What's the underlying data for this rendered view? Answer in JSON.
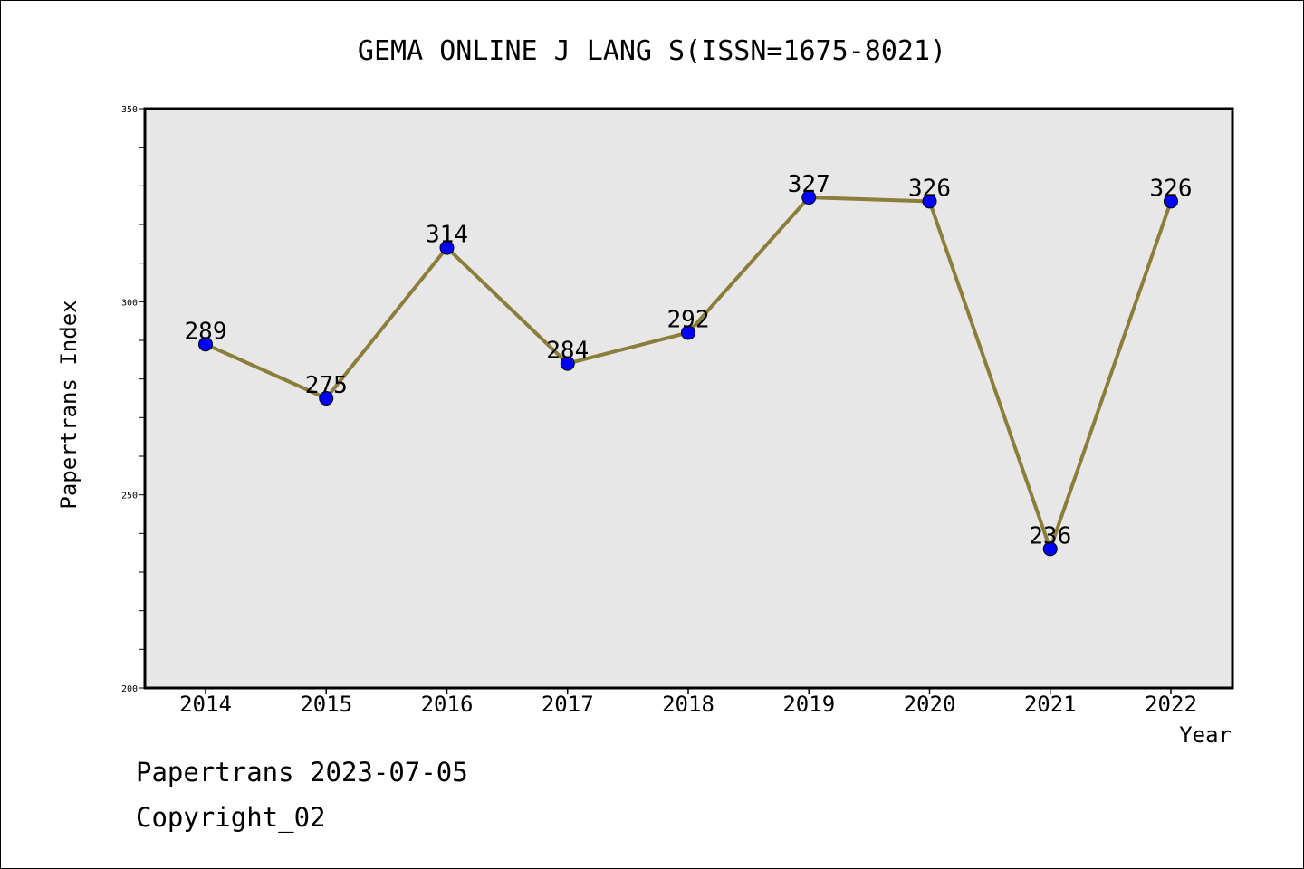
{
  "chart_data": {
    "type": "line",
    "title": "GEMA ONLINE J LANG S(ISSN=1675-8021)",
    "xlabel": "Year",
    "ylabel": "Papertrans Index",
    "categories": [
      "2014",
      "2015",
      "2016",
      "2017",
      "2018",
      "2019",
      "2020",
      "2021",
      "2022"
    ],
    "values": [
      289,
      275,
      314,
      284,
      292,
      327,
      326,
      236,
      326
    ],
    "data_labels": [
      "289",
      "275",
      "314",
      "284",
      "292",
      "327",
      "326",
      "236",
      "326"
    ],
    "ylim": [
      200,
      350
    ],
    "y_ticks": [
      "200",
      "250",
      "300",
      "350"
    ],
    "y_minor_step": 10,
    "grid": false,
    "legend": "none",
    "colors": {
      "line": "#8b7d3a",
      "marker": "#0000ff",
      "plot_background": "#e7e7e7",
      "axis": "#000000"
    }
  },
  "footer": {
    "date_line": "Papertrans 2023-07-05",
    "copyright_line": "Copyright_02"
  }
}
